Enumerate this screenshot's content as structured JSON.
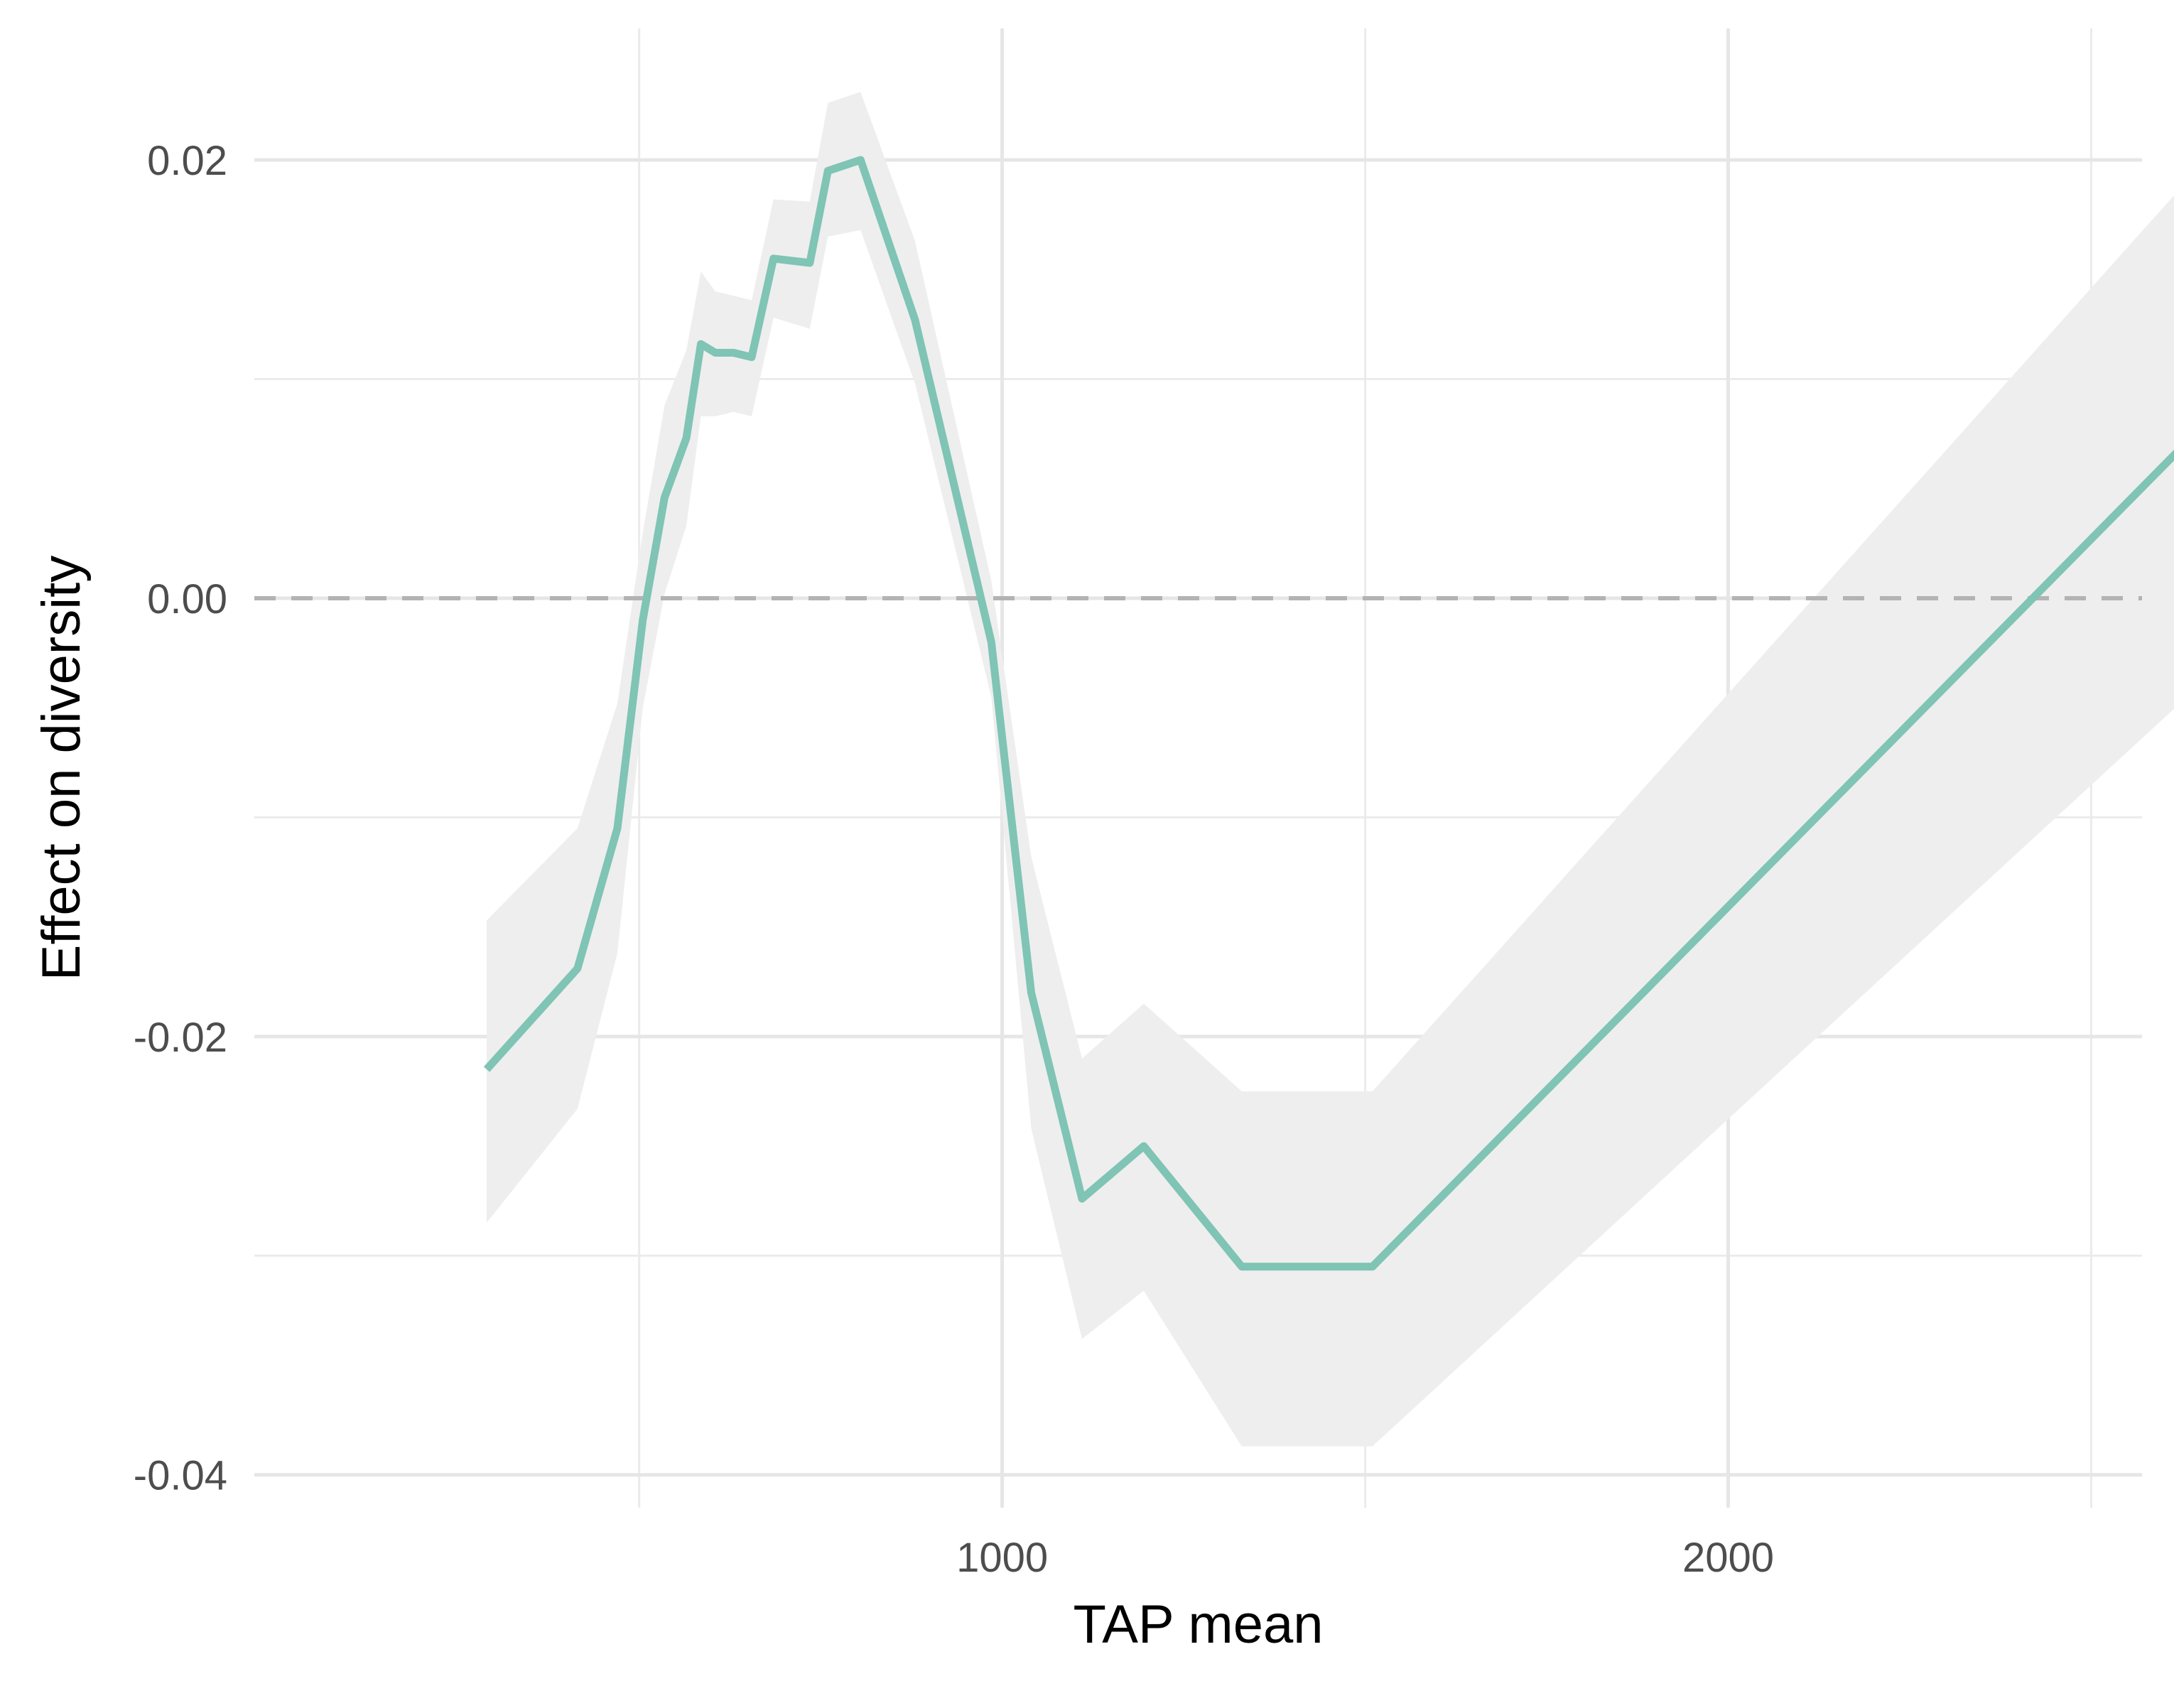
{
  "chart_data": {
    "type": "line",
    "xlabel": "TAP mean",
    "ylabel": "Effect on diversity",
    "xlim": [
      -30,
      2570
    ],
    "ylim": [
      -0.0415,
      0.026
    ],
    "x_ticks": [
      1000,
      2000
    ],
    "x_tick_labels": [
      "1000",
      "2000"
    ],
    "x_minor_gridlines": [
      500,
      1500,
      2500
    ],
    "y_ticks": [
      -0.04,
      -0.02,
      0.0,
      0.02
    ],
    "y_tick_labels": [
      "-0.04",
      "-0.02",
      "0.00",
      "0.02"
    ],
    "y_minor_gridlines": [
      -0.03,
      -0.01,
      0.01
    ],
    "grid": true,
    "reference_line": {
      "y": 0.0,
      "style": "dashed",
      "color": "#b3b3b3"
    },
    "series": [
      {
        "color": "#7fc4b4",
        "ribbon_color": "#eeeeee",
        "x": [
          290,
          415,
          470,
          505,
          535,
          565,
          585,
          605,
          630,
          655,
          685,
          735,
          760,
          805,
          880,
          985,
          1040,
          1110,
          1195,
          1330,
          1510,
          2655
        ],
        "y": [
          -0.0215,
          -0.0169,
          -0.0105,
          -0.001,
          0.0046,
          0.0073,
          0.0116,
          0.0112,
          0.0112,
          0.011,
          0.0155,
          0.0153,
          0.0195,
          0.02,
          0.0127,
          -0.002,
          -0.018,
          -0.0274,
          -0.025,
          -0.0305,
          -0.0305,
          0.0079
        ],
        "lower": [
          -0.0285,
          -0.0233,
          -0.0162,
          -0.005,
          0.0002,
          0.0033,
          0.0083,
          0.0083,
          0.0085,
          0.0083,
          0.0128,
          0.0123,
          0.0165,
          0.0168,
          0.0098,
          -0.0045,
          -0.0242,
          -0.0338,
          -0.0316,
          -0.0387,
          -0.0387,
          -0.0038
        ],
        "upper": [
          -0.0147,
          -0.0105,
          -0.0048,
          0.003,
          0.0088,
          0.0113,
          0.0149,
          0.014,
          0.0138,
          0.0136,
          0.0182,
          0.0181,
          0.0226,
          0.0231,
          0.0163,
          0.0008,
          -0.0118,
          -0.021,
          -0.0185,
          -0.0225,
          -0.0225,
          0.0199
        ]
      }
    ]
  }
}
